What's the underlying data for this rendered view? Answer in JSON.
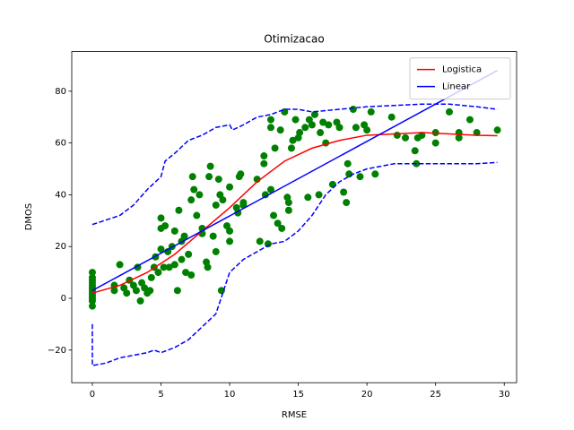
{
  "chart_data": {
    "type": "line",
    "title": "Otimizacao",
    "x_label": "RMSE",
    "y_label": "DMOS",
    "xlim": [
      -1.5,
      30.9
    ],
    "ylim": [
      -32.6,
      95.3
    ],
    "xticks": [
      0,
      5,
      10,
      15,
      20,
      25,
      30
    ],
    "yticks": [
      {
        "value": -20,
        "label": "−20"
      },
      0,
      20,
      40,
      60,
      80
    ],
    "grid": false,
    "legend": "upper right",
    "series": [
      {
        "style": "markers",
        "color": "#008000",
        "x": [
          0,
          0,
          0,
          0,
          0,
          0,
          0,
          0,
          0,
          0,
          0,
          0,
          1.6,
          1.6,
          2,
          2.3,
          2.5,
          2.7,
          3,
          3.2,
          3.3,
          3.5,
          3.6,
          3.8,
          4,
          4.2,
          4.3,
          4.5,
          4.6,
          4.8,
          5,
          5,
          5,
          5.2,
          5.3,
          5.5,
          5.6,
          5.8,
          6,
          6,
          6.2,
          6.3,
          6.5,
          6.5,
          6.7,
          6.8,
          7,
          7.2,
          7.2,
          7.3,
          7.4,
          7.6,
          7.8,
          8,
          8,
          8.3,
          8.4,
          8.5,
          8.6,
          8.8,
          9,
          9,
          9.2,
          9.3,
          9.4,
          9.5,
          9.8,
          10,
          10,
          10,
          10.5,
          10.6,
          10.7,
          10.8,
          11,
          11,
          12,
          12.2,
          12.5,
          12.5,
          12.6,
          12.8,
          13,
          13,
          13,
          13.2,
          13.3,
          13.5,
          13.8,
          13.7,
          14,
          14.2,
          14.3,
          14.3,
          14.5,
          14.6,
          14.8,
          15,
          15.1,
          15.5,
          15.7,
          15.8,
          16,
          16.2,
          16.5,
          16.6,
          16.8,
          17,
          17.2,
          17.5,
          17.8,
          18,
          18.3,
          18.5,
          18.6,
          18.7,
          19,
          19.2,
          19.5,
          19.8,
          20,
          20.3,
          20.6,
          21.8,
          22.2,
          22.8,
          23.5,
          23.6,
          23.7,
          24,
          25,
          25,
          26,
          26.7,
          26.7,
          27.5,
          28,
          29.5
        ],
        "values": [
          10,
          8,
          6,
          5,
          3,
          2,
          0,
          -1,
          -3,
          1,
          4,
          7,
          3,
          5,
          13,
          4,
          2,
          7,
          5,
          3,
          12,
          -1,
          6,
          4,
          2,
          3,
          8,
          12,
          16,
          10,
          19,
          27,
          31,
          12,
          28,
          18,
          12,
          20,
          13,
          26,
          3,
          34,
          22,
          15,
          24,
          10,
          17,
          9,
          38,
          47,
          42,
          32,
          40,
          25,
          27,
          14,
          12,
          47,
          51,
          24,
          36,
          18,
          46,
          40,
          3,
          38,
          28,
          22,
          26,
          43,
          35,
          33,
          47,
          48,
          37,
          36,
          46,
          22,
          55,
          52,
          40,
          21,
          69,
          66,
          42,
          32,
          58,
          29,
          27,
          65,
          72,
          39,
          34,
          37,
          58,
          61,
          69,
          62,
          64,
          66,
          39,
          69,
          67,
          71,
          40,
          64,
          68,
          60,
          67,
          44,
          68,
          66,
          41,
          37,
          52,
          48,
          73,
          66,
          47,
          67,
          65,
          72,
          48,
          70,
          63,
          62,
          57,
          52,
          62,
          63,
          64,
          60,
          72,
          62,
          64,
          69,
          64,
          65
        ]
      },
      {
        "name": "Logistica",
        "style": "solid",
        "color": "#ff0000",
        "x": [
          0,
          2,
          4,
          6,
          8,
          10,
          12,
          14,
          16,
          18,
          20,
          22,
          24,
          26,
          28,
          29.5
        ],
        "values": [
          2,
          5,
          10,
          17,
          26,
          35,
          45,
          53,
          58,
          61,
          63,
          63.5,
          64,
          63.5,
          63,
          62.8
        ]
      },
      {
        "name": "Linear",
        "style": "solid",
        "color": "#0000ff",
        "x": [
          0,
          29.5
        ],
        "values": [
          3,
          88
        ]
      },
      {
        "style": "dashed",
        "color": "#0000ff",
        "x": [
          0,
          2,
          3,
          4,
          5,
          5.3,
          6,
          7,
          8,
          9,
          10,
          10.2,
          11,
          12,
          13,
          14,
          15,
          16,
          18,
          20,
          22,
          24,
          26,
          28,
          29.5
        ],
        "values": [
          28.5,
          32,
          36,
          42,
          47,
          53,
          56,
          61,
          63,
          66,
          67,
          65,
          67,
          70,
          71,
          73,
          73,
          72,
          73,
          74,
          74.5,
          75,
          75,
          74,
          73
        ]
      },
      {
        "style": "dashed",
        "color": "#0000ff",
        "x": [
          0,
          0,
          1,
          2,
          3,
          4,
          4.5,
          5,
          6,
          7,
          8,
          9,
          9.5,
          10,
          11,
          12,
          13,
          14,
          15,
          16,
          17,
          18,
          19,
          20,
          21,
          22,
          24,
          26,
          28,
          29.5
        ],
        "values": [
          -10,
          -26,
          -25,
          -23,
          -22,
          -21,
          -20,
          -21,
          -19,
          -16,
          -11,
          -6,
          2,
          10,
          15,
          18,
          21,
          22,
          26,
          32,
          40,
          45,
          48,
          50,
          51,
          52,
          52,
          52,
          52,
          52.5
        ]
      }
    ]
  }
}
